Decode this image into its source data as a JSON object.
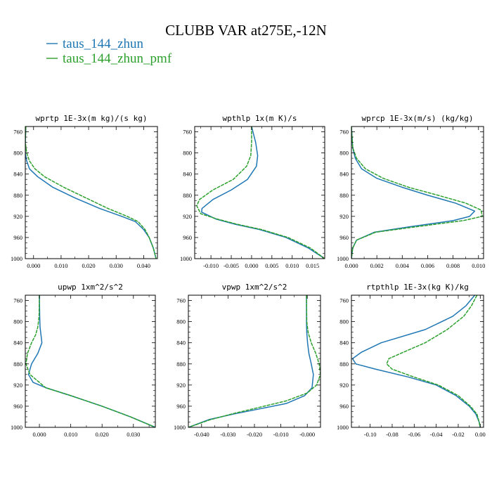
{
  "figure": {
    "title": "CLUBB VAR at275E,-12N",
    "legend": [
      {
        "label": "taus_144_zhun",
        "color": "#1f77b4"
      },
      {
        "label": "taus_144_zhun_pmf",
        "color": "#2ca02c"
      }
    ]
  },
  "chart_data": [
    {
      "type": "line",
      "title": "wprtp  1E-3x(m kg)/(s kg)",
      "xlim": [
        -0.003,
        0.045
      ],
      "xticks": [
        0.0,
        0.01,
        0.02,
        0.03,
        0.04
      ],
      "xtick_labels": [
        "0.000",
        "0.010",
        "0.020",
        "0.030",
        "0.040"
      ],
      "ylim": [
        750,
        1000
      ],
      "y_inverted": true,
      "yticks": [
        760,
        800,
        840,
        880,
        920,
        960,
        1000
      ],
      "ytick_labels": [
        "760",
        "800",
        "840",
        "880",
        "920",
        "960",
        "1000"
      ],
      "series": [
        {
          "name": "taus_144_zhun",
          "color": "#1f77b4",
          "dash": "solid",
          "x": [
            -0.0028,
            -0.003,
            -0.003,
            -0.0025,
            -0.0015,
            0.0015,
            0.007,
            0.015,
            0.024,
            0.032,
            0.037,
            0.04,
            0.042,
            0.0435,
            0.0445
          ],
          "y": [
            750,
            780,
            800,
            815,
            830,
            845,
            865,
            885,
            905,
            920,
            930,
            945,
            960,
            980,
            1000
          ]
        },
        {
          "name": "taus_144_zhun_pmf",
          "color": "#2ca02c",
          "dash": "dashed",
          "x": [
            -0.0028,
            -0.003,
            -0.0025,
            -0.0015,
            0.0005,
            0.004,
            0.011,
            0.019,
            0.027,
            0.034,
            0.038,
            0.0405,
            0.042,
            0.0435,
            0.0445
          ],
          "y": [
            750,
            780,
            800,
            815,
            830,
            845,
            865,
            885,
            905,
            920,
            930,
            945,
            960,
            980,
            1000
          ]
        }
      ]
    },
    {
      "type": "line",
      "title": "wpthlp  1x(m K)/s",
      "xlim": [
        -0.014,
        0.018
      ],
      "xticks": [
        -0.01,
        -0.005,
        0.0,
        0.005,
        0.01,
        0.015
      ],
      "xtick_labels": [
        "-0.010",
        "-0.005",
        "0.000",
        "0.005",
        "0.010",
        "0.015"
      ],
      "ylim": [
        750,
        1000
      ],
      "y_inverted": true,
      "yticks": [
        760,
        800,
        840,
        880,
        920,
        960,
        1000
      ],
      "ytick_labels": [
        "760",
        "800",
        "840",
        "880",
        "920",
        "960",
        "1000"
      ],
      "series": [
        {
          "name": "taus_144_zhun",
          "color": "#1f77b4",
          "dash": "solid",
          "x": [
            0.0,
            0.001,
            0.0015,
            0.0012,
            -0.001,
            -0.005,
            -0.0095,
            -0.0122,
            -0.0123,
            -0.0088,
            -0.004,
            0.002,
            0.0085,
            0.014,
            0.018
          ],
          "y": [
            750,
            780,
            805,
            825,
            850,
            870,
            888,
            905,
            912,
            925,
            935,
            945,
            960,
            980,
            1000
          ]
        },
        {
          "name": "taus_144_zhun_pmf",
          "color": "#2ca02c",
          "dash": "dashed",
          "x": [
            0.0,
            0.0,
            -0.0002,
            -0.0012,
            -0.0045,
            -0.0095,
            -0.0128,
            -0.0135,
            -0.0125,
            -0.0085,
            -0.0035,
            0.0025,
            0.009,
            0.0145,
            0.018
          ],
          "y": [
            750,
            780,
            805,
            825,
            850,
            870,
            888,
            900,
            915,
            925,
            935,
            945,
            960,
            980,
            1000
          ]
        }
      ]
    },
    {
      "type": "line",
      "title": "wprcp  1E-3x(m/s) (kg/kg)",
      "xlim": [
        0.0,
        0.0104
      ],
      "xticks": [
        0.0,
        0.002,
        0.004,
        0.006,
        0.008,
        0.01
      ],
      "xtick_labels": [
        "0.000",
        "0.002",
        "0.004",
        "0.006",
        "0.008",
        "0.010"
      ],
      "ylim": [
        750,
        1000
      ],
      "y_inverted": true,
      "yticks": [
        760,
        800,
        840,
        880,
        920,
        960,
        1000
      ],
      "ytick_labels": [
        "760",
        "800",
        "840",
        "880",
        "920",
        "960",
        "1000"
      ],
      "series": [
        {
          "name": "taus_144_zhun",
          "color": "#1f77b4",
          "dash": "solid",
          "x": [
            0.0,
            0.0001,
            0.0003,
            0.0008,
            0.002,
            0.004,
            0.006,
            0.0082,
            0.0097,
            0.0093,
            0.008,
            0.0045,
            0.0018,
            0.0004,
            0.0001,
            0.0
          ],
          "y": [
            750,
            790,
            810,
            830,
            848,
            865,
            880,
            895,
            910,
            920,
            928,
            940,
            950,
            965,
            980,
            1000
          ]
        },
        {
          "name": "taus_144_zhun_pmf",
          "color": "#2ca02c",
          "dash": "dashed",
          "x": [
            0.0,
            0.0001,
            0.0004,
            0.0011,
            0.0025,
            0.0045,
            0.0068,
            0.009,
            0.0102,
            0.0103,
            0.0088,
            0.005,
            0.0019,
            0.0004,
            0.0001,
            0.0
          ],
          "y": [
            750,
            790,
            810,
            830,
            848,
            865,
            880,
            895,
            908,
            920,
            928,
            940,
            950,
            965,
            980,
            1000
          ]
        }
      ]
    },
    {
      "type": "line",
      "title": "upwp  1xm^2/s^2",
      "xlim": [
        -0.0045,
        0.037
      ],
      "xticks": [
        0.0,
        0.01,
        0.02,
        0.03
      ],
      "xtick_labels": [
        "0.000",
        "0.010",
        "0.020",
        "0.030"
      ],
      "ylim": [
        750,
        1000
      ],
      "y_inverted": true,
      "yticks": [
        760,
        800,
        840,
        880,
        920,
        960,
        1000
      ],
      "ytick_labels": [
        "760",
        "800",
        "840",
        "880",
        "920",
        "960",
        "1000"
      ],
      "series": [
        {
          "name": "taus_144_zhun",
          "color": "#1f77b4",
          "dash": "solid",
          "x": [
            0.0,
            0.0001,
            0.0002,
            0.0005,
            0.0008,
            -0.0005,
            -0.0025,
            -0.0035,
            -0.002,
            0.002,
            0.01,
            0.02,
            0.029,
            0.037
          ],
          "y": [
            750,
            790,
            810,
            825,
            840,
            860,
            880,
            900,
            915,
            925,
            940,
            960,
            980,
            1000
          ]
        },
        {
          "name": "taus_144_zhun_pmf",
          "color": "#2ca02c",
          "dash": "dashed",
          "x": [
            0.0,
            -0.0001,
            -0.0005,
            -0.0012,
            -0.0025,
            -0.0038,
            -0.0043,
            -0.003,
            -0.001,
            0.002,
            0.01,
            0.02,
            0.029,
            0.037
          ],
          "y": [
            750,
            790,
            810,
            825,
            840,
            860,
            880,
            900,
            910,
            925,
            940,
            960,
            980,
            1000
          ]
        }
      ]
    },
    {
      "type": "line",
      "title": "vpwp  1xm^2/s^2",
      "xlim": [
        -0.045,
        0.005
      ],
      "xticks": [
        -0.04,
        -0.03,
        -0.02,
        -0.01,
        0.0
      ],
      "xtick_labels": [
        "-0.040",
        "-0.030",
        "-0.020",
        "-0.010",
        "-0.000"
      ],
      "ylim": [
        750,
        1000
      ],
      "y_inverted": true,
      "yticks": [
        760,
        800,
        840,
        880,
        920,
        960,
        1000
      ],
      "ytick_labels": [
        "760",
        "800",
        "840",
        "880",
        "920",
        "960",
        "1000"
      ],
      "series": [
        {
          "name": "taus_144_zhun",
          "color": "#1f77b4",
          "dash": "solid",
          "x": [
            -0.0003,
            -0.0003,
            -0.0002,
            0.0001,
            0.0006,
            0.0015,
            0.0023,
            0.0018,
            -0.001,
            -0.008,
            -0.018,
            -0.028,
            -0.037,
            -0.045
          ],
          "y": [
            750,
            800,
            820,
            840,
            860,
            880,
            900,
            925,
            940,
            955,
            965,
            975,
            985,
            1000
          ]
        },
        {
          "name": "taus_144_zhun_pmf",
          "color": "#2ca02c",
          "dash": "dashed",
          "x": [
            -0.0003,
            -0.0002,
            0.0003,
            0.0015,
            0.0032,
            0.0045,
            0.005,
            0.0035,
            0.0,
            -0.008,
            -0.018,
            -0.028,
            -0.037,
            -0.045
          ],
          "y": [
            750,
            800,
            820,
            840,
            860,
            880,
            900,
            920,
            935,
            950,
            962,
            974,
            986,
            1000
          ]
        }
      ]
    },
    {
      "type": "line",
      "title": "rtpthlp  1E-3x(kg K)/kg",
      "xlim": [
        -0.117,
        0.003
      ],
      "xticks": [
        -0.1,
        -0.08,
        -0.06,
        -0.04,
        -0.02,
        0.0
      ],
      "xtick_labels": [
        "-0.10",
        "-0.08",
        "-0.06",
        "-0.04",
        "-0.02",
        "0.00"
      ],
      "ylim": [
        750,
        1000
      ],
      "y_inverted": true,
      "yticks": [
        760,
        800,
        840,
        880,
        920,
        960,
        1000
      ],
      "ytick_labels": [
        "760",
        "800",
        "840",
        "880",
        "920",
        "960",
        "1000"
      ],
      "series": [
        {
          "name": "taus_144_zhun",
          "color": "#1f77b4",
          "dash": "solid",
          "x": [
            -0.005,
            -0.013,
            -0.025,
            -0.05,
            -0.09,
            -0.108,
            -0.116,
            -0.113,
            -0.095,
            -0.065,
            -0.04,
            -0.022,
            -0.01,
            -0.004,
            -0.001,
            0.0
          ],
          "y": [
            750,
            770,
            790,
            815,
            840,
            858,
            870,
            880,
            890,
            905,
            920,
            940,
            960,
            975,
            990,
            1000
          ]
        },
        {
          "name": "taus_144_zhun_pmf",
          "color": "#2ca02c",
          "dash": "dashed",
          "x": [
            -0.003,
            -0.008,
            -0.015,
            -0.03,
            -0.05,
            -0.07,
            -0.083,
            -0.085,
            -0.08,
            -0.06,
            -0.038,
            -0.02,
            -0.009,
            -0.003,
            -0.001,
            0.0
          ],
          "y": [
            750,
            770,
            790,
            815,
            840,
            858,
            870,
            880,
            890,
            905,
            920,
            940,
            960,
            975,
            990,
            1000
          ]
        }
      ]
    }
  ]
}
